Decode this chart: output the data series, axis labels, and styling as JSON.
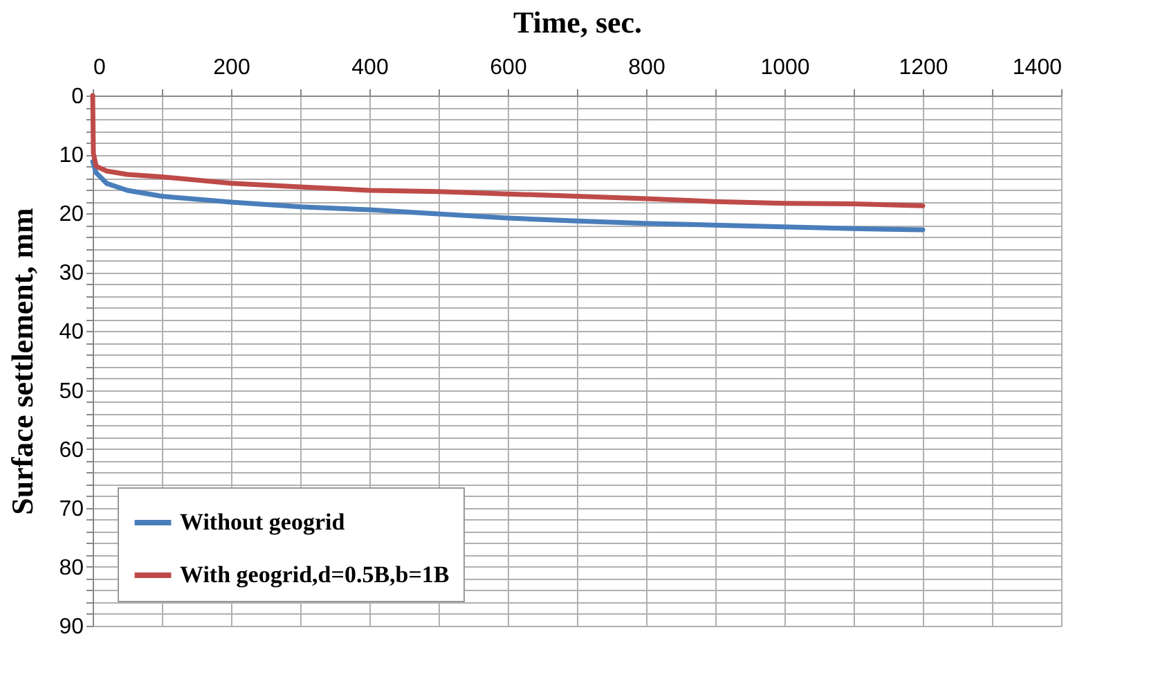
{
  "chart_data": {
    "type": "line",
    "xlabel": "Time, sec.",
    "ylabel": "Surface settlement, mm",
    "xlim": [
      0,
      1400
    ],
    "ylim": [
      90,
      0
    ],
    "xticks": [
      0,
      {
        "value": 100,
        "label": null
      },
      200,
      {
        "value": 300,
        "label": null
      },
      400,
      {
        "value": 500,
        "label": null
      },
      600,
      {
        "value": 700,
        "label": null
      },
      800,
      {
        "value": 900,
        "label": null
      },
      1000,
      {
        "value": 1100,
        "label": null
      },
      1200,
      {
        "value": 1300,
        "label": null
      },
      1400
    ],
    "yticks": [
      0,
      {
        "value": 2,
        "label": null
      },
      {
        "value": 4,
        "label": null
      },
      {
        "value": 6,
        "label": null
      },
      {
        "value": 8,
        "label": null
      },
      10,
      {
        "value": 12,
        "label": null
      },
      {
        "value": 14,
        "label": null
      },
      {
        "value": 16,
        "label": null
      },
      {
        "value": 18,
        "label": null
      },
      20,
      {
        "value": 22,
        "label": null
      },
      {
        "value": 24,
        "label": null
      },
      {
        "value": 26,
        "label": null
      },
      {
        "value": 28,
        "label": null
      },
      30,
      {
        "value": 32,
        "label": null
      },
      {
        "value": 34,
        "label": null
      },
      {
        "value": 36,
        "label": null
      },
      {
        "value": 38,
        "label": null
      },
      40,
      {
        "value": 42,
        "label": null
      },
      {
        "value": 44,
        "label": null
      },
      {
        "value": 46,
        "label": null
      },
      {
        "value": 48,
        "label": null
      },
      50,
      {
        "value": 52,
        "label": null
      },
      {
        "value": 54,
        "label": null
      },
      {
        "value": 56,
        "label": null
      },
      {
        "value": 58,
        "label": null
      },
      60,
      {
        "value": 62,
        "label": null
      },
      {
        "value": 64,
        "label": null
      },
      {
        "value": 66,
        "label": null
      },
      {
        "value": 68,
        "label": null
      },
      70,
      {
        "value": 72,
        "label": null
      },
      {
        "value": 74,
        "label": null
      },
      {
        "value": 76,
        "label": null
      },
      {
        "value": 78,
        "label": null
      },
      80,
      {
        "value": 82,
        "label": null
      },
      {
        "value": 84,
        "label": null
      },
      {
        "value": 86,
        "label": null
      },
      {
        "value": 88,
        "label": null
      },
      90
    ],
    "grid": true,
    "legend": "bottom left",
    "line_style": "solid",
    "marker": "none",
    "x": [
      0,
      5,
      20,
      50,
      100,
      200,
      300,
      400,
      500,
      600,
      700,
      800,
      900,
      1000,
      1100,
      1200
    ],
    "series": [
      {
        "name": "Without geogrid",
        "color": "#4a7ebb",
        "values": [
          11.2,
          13.1,
          14.9,
          16.1,
          17.1,
          18.1,
          18.9,
          19.4,
          20.1,
          20.8,
          21.3,
          21.7,
          22.0,
          22.3,
          22.6,
          22.8
        ]
      },
      {
        "name": "With geogrid,d=0.5B,b=1B",
        "color": "#be4b48",
        "x": [
          0,
          1,
          5,
          20,
          50,
          100,
          200,
          300,
          400,
          500,
          600,
          700,
          800,
          900,
          1000,
          1100,
          1200
        ],
        "values": [
          0,
          9.8,
          12.0,
          12.8,
          13.4,
          13.8,
          14.9,
          15.5,
          16.1,
          16.3,
          16.7,
          17.1,
          17.5,
          18.0,
          18.3,
          18.4,
          18.7
        ]
      }
    ]
  }
}
